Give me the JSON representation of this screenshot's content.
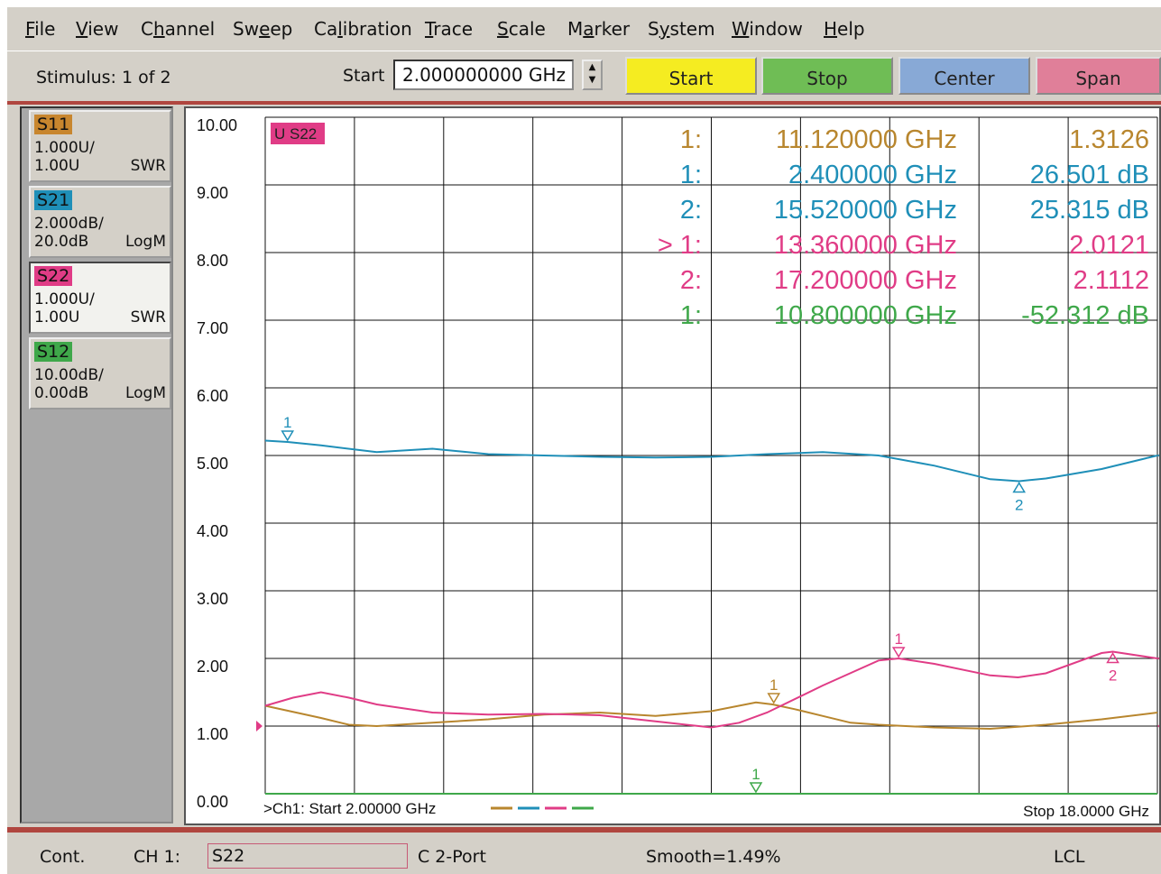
{
  "menu": [
    "File",
    "View",
    "Channel",
    "Sweep",
    "Calibration",
    "Trace",
    "Scale",
    "Marker",
    "System",
    "Window",
    "Help"
  ],
  "menu_accel": [
    "F",
    "V",
    "h",
    "e",
    "l",
    "T",
    "S",
    "a",
    "y",
    "W",
    "H"
  ],
  "toolbar": {
    "stimulus": "Stimulus: 1 of 2",
    "start_label": "Start",
    "start_value": "2.000000000 GHz",
    "softkeys": [
      "Start",
      "Stop",
      "Center",
      "Span"
    ]
  },
  "traces": [
    {
      "name": "S11",
      "scale": "1.000U/",
      "ref": "1.00U",
      "format": "SWR",
      "color": "#c8862e"
    },
    {
      "name": "S21",
      "scale": "2.000dB/",
      "ref": "20.0dB",
      "format": "LogM",
      "color": "#1f8fb8"
    },
    {
      "name": "S22",
      "scale": "1.000U/",
      "ref": "1.00U",
      "format": "SWR",
      "color": "#e03c86"
    },
    {
      "name": "S12",
      "scale": "10.00dB/",
      "ref": "0.00dB",
      "format": "LogM",
      "color": "#3fa84a"
    }
  ],
  "chart": {
    "active_label": "U S22",
    "footer_start": ">Ch1: Start  2.00000 GHz",
    "footer_stop": "Stop  18.0000 GHz"
  },
  "marker_table": [
    {
      "id": "1:",
      "freq": "11.120000 GHz",
      "value": "1.3126",
      "color": "#b8862e"
    },
    {
      "id": "1:",
      "freq": "2.400000 GHz",
      "value": "26.501 dB",
      "color": "#1f8fb8"
    },
    {
      "id": "2:",
      "freq": "15.520000 GHz",
      "value": "25.315 dB",
      "color": "#1f8fb8"
    },
    {
      "id": "> 1:",
      "freq": "13.360000 GHz",
      "value": "2.0121",
      "color": "#e03c86"
    },
    {
      "id": "2:",
      "freq": "17.200000 GHz",
      "value": "2.1112",
      "color": "#e03c86"
    },
    {
      "id": "1:",
      "freq": "10.800000 GHz",
      "value": "-52.312 dB",
      "color": "#3fa84a"
    }
  ],
  "chart_data": {
    "type": "line",
    "ylim": [
      0,
      10
    ],
    "xlim": [
      2.0,
      18.0
    ],
    "y_ticks": [
      "10.00",
      "9.00",
      "8.00",
      "7.00",
      "6.00",
      "5.00",
      "4.00",
      "3.00",
      "2.00",
      "1.00",
      "0.00"
    ],
    "series": [
      {
        "name": "S11",
        "color": "#b8862e",
        "x": [
          2.0,
          3.0,
          3.5,
          4.0,
          5.0,
          6.0,
          7.0,
          8.0,
          9.0,
          10.0,
          10.8,
          11.1,
          11.5,
          12.0,
          12.5,
          13.0,
          14.0,
          15.0,
          16.0,
          17.0,
          18.0
        ],
        "y": [
          1.3,
          1.12,
          1.02,
          1.0,
          1.05,
          1.1,
          1.17,
          1.2,
          1.15,
          1.22,
          1.35,
          1.32,
          1.25,
          1.15,
          1.05,
          1.02,
          0.98,
          0.96,
          1.02,
          1.1,
          1.2
        ]
      },
      {
        "name": "S21",
        "color": "#1f8fb8",
        "x": [
          2.0,
          2.4,
          3.0,
          4.0,
          5.0,
          6.0,
          7.0,
          8.0,
          9.0,
          10.0,
          11.0,
          12.0,
          13.0,
          14.0,
          15.0,
          15.52,
          16.0,
          17.0,
          18.0
        ],
        "y": [
          5.22,
          5.2,
          5.15,
          5.05,
          5.1,
          5.02,
          5.0,
          4.98,
          4.97,
          4.98,
          5.02,
          5.05,
          5.0,
          4.85,
          4.65,
          4.62,
          4.66,
          4.8,
          5.0
        ]
      },
      {
        "name": "S22",
        "color": "#e03c86",
        "x": [
          2.0,
          2.5,
          3.0,
          3.5,
          4.0,
          5.0,
          6.0,
          7.0,
          8.0,
          9.0,
          10.0,
          10.5,
          11.0,
          12.0,
          13.0,
          13.36,
          14.0,
          15.0,
          15.5,
          16.0,
          17.0,
          17.2,
          18.0
        ],
        "y": [
          1.3,
          1.42,
          1.5,
          1.42,
          1.32,
          1.2,
          1.17,
          1.18,
          1.16,
          1.07,
          0.98,
          1.05,
          1.2,
          1.6,
          1.97,
          2.0,
          1.92,
          1.75,
          1.72,
          1.78,
          2.08,
          2.1,
          2.0
        ]
      },
      {
        "name": "S12",
        "color": "#3fa84a",
        "x": [
          2.0,
          18.0
        ],
        "y": [
          0.0,
          0.0
        ]
      }
    ],
    "markers": [
      {
        "trace": "S21",
        "label": "1",
        "x": 2.4,
        "y": 5.2,
        "dir": "down"
      },
      {
        "trace": "S21",
        "label": "2",
        "x": 15.52,
        "y": 4.62,
        "dir": "up"
      },
      {
        "trace": "S11",
        "label": "1",
        "x": 11.12,
        "y": 1.32,
        "dir": "down"
      },
      {
        "trace": "S22",
        "label": "1",
        "x": 13.36,
        "y": 2.0,
        "dir": "down"
      },
      {
        "trace": "S22",
        "label": "2",
        "x": 17.2,
        "y": 2.1,
        "dir": "up"
      },
      {
        "trace": "S12",
        "label": "1",
        "x": 10.8,
        "y": 0.0,
        "dir": "down"
      }
    ],
    "legend_colors": [
      "#b8862e",
      "#1f8fb8",
      "#e03c86",
      "#3fa84a"
    ]
  },
  "status": {
    "mode": "Cont.",
    "channel": "CH 1:",
    "active_trace": "S22",
    "cal": "C  2-Port",
    "smooth": "Smooth=1.49%",
    "lcl": "LCL"
  }
}
